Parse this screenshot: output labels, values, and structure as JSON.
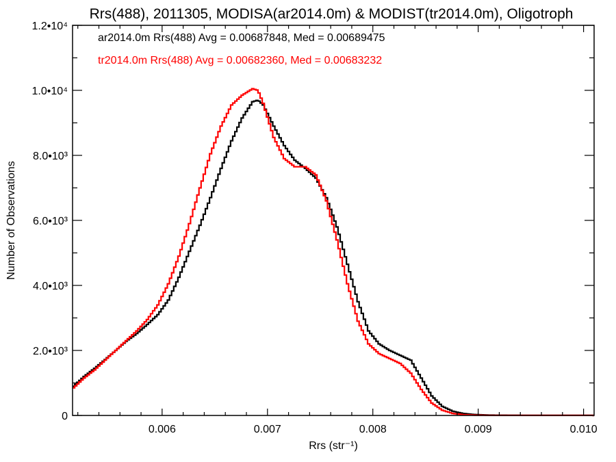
{
  "chart_data": {
    "type": "line",
    "style": "histogram-step",
    "title": "Rrs(488), 2011305, MODISA(ar2014.0m) & MODIST(tr2014.0m), Oligotroph",
    "xlabel": "Rrs (str⁻¹)",
    "ylabel": "Number of Observations",
    "xlim": [
      0.00515,
      0.0101
    ],
    "ylim": [
      0,
      12000
    ],
    "x_ticks": [
      {
        "value": 0.006,
        "label": "0.006"
      },
      {
        "value": 0.007,
        "label": "0.007"
      },
      {
        "value": 0.008,
        "label": "0.008"
      },
      {
        "value": 0.009,
        "label": "0.009"
      },
      {
        "value": 0.01,
        "label": "0.010"
      }
    ],
    "y_ticks": [
      {
        "value": 0,
        "label": "0"
      },
      {
        "value": 2000,
        "label": "2.0•10³"
      },
      {
        "value": 4000,
        "label": "4.0•10³"
      },
      {
        "value": 6000,
        "label": "6.0•10³"
      },
      {
        "value": 8000,
        "label": "8.0•10³"
      },
      {
        "value": 10000,
        "label": "1.0•10⁴"
      },
      {
        "value": 12000,
        "label": "1.2•10⁴"
      }
    ],
    "legend": {
      "placement": "top-left"
    },
    "series": [
      {
        "name": "ar2014.0m Rrs(488) Avg = 0.00687848, Med = 0.00689475",
        "color": "#000000",
        "points": [
          [
            0.00515,
            900
          ],
          [
            0.00525,
            1200
          ],
          [
            0.00535,
            1450
          ],
          [
            0.00545,
            1720
          ],
          [
            0.00555,
            2000
          ],
          [
            0.00565,
            2280
          ],
          [
            0.00575,
            2520
          ],
          [
            0.00585,
            2800
          ],
          [
            0.00595,
            3100
          ],
          [
            0.00605,
            3550
          ],
          [
            0.00615,
            4250
          ],
          [
            0.00625,
            5050
          ],
          [
            0.00635,
            5850
          ],
          [
            0.00645,
            6700
          ],
          [
            0.00655,
            7600
          ],
          [
            0.00665,
            8450
          ],
          [
            0.00675,
            9150
          ],
          [
            0.00685,
            9650
          ],
          [
            0.0069,
            9700
          ],
          [
            0.00695,
            9550
          ],
          [
            0.00705,
            8900
          ],
          [
            0.00715,
            8300
          ],
          [
            0.00725,
            7850
          ],
          [
            0.00735,
            7600
          ],
          [
            0.00745,
            7300
          ],
          [
            0.00755,
            6700
          ],
          [
            0.00765,
            5800
          ],
          [
            0.00775,
            4650
          ],
          [
            0.00785,
            3500
          ],
          [
            0.00795,
            2600
          ],
          [
            0.00805,
            2200
          ],
          [
            0.00815,
            2000
          ],
          [
            0.00825,
            1850
          ],
          [
            0.00835,
            1700
          ],
          [
            0.00845,
            1150
          ],
          [
            0.00855,
            600
          ],
          [
            0.00865,
            280
          ],
          [
            0.00875,
            130
          ],
          [
            0.00885,
            60
          ],
          [
            0.00895,
            30
          ],
          [
            0.0091,
            10
          ],
          [
            0.0095,
            3
          ],
          [
            0.0101,
            1
          ]
        ]
      },
      {
        "name": "tr2014.0m Rrs(488) Avg = 0.00682360, Med = 0.00683232",
        "color": "#ff0000",
        "points": [
          [
            0.00515,
            850
          ],
          [
            0.00525,
            1150
          ],
          [
            0.00535,
            1400
          ],
          [
            0.00545,
            1700
          ],
          [
            0.00555,
            2000
          ],
          [
            0.00565,
            2300
          ],
          [
            0.00575,
            2600
          ],
          [
            0.00585,
            2950
          ],
          [
            0.00595,
            3400
          ],
          [
            0.00605,
            4050
          ],
          [
            0.00615,
            4900
          ],
          [
            0.00625,
            5900
          ],
          [
            0.00635,
            7000
          ],
          [
            0.00645,
            8050
          ],
          [
            0.00655,
            8900
          ],
          [
            0.00665,
            9550
          ],
          [
            0.00675,
            9850
          ],
          [
            0.00685,
            10050
          ],
          [
            0.0069,
            10000
          ],
          [
            0.00695,
            9600
          ],
          [
            0.00705,
            8550
          ],
          [
            0.00715,
            7900
          ],
          [
            0.00725,
            7650
          ],
          [
            0.00735,
            7650
          ],
          [
            0.00745,
            7400
          ],
          [
            0.00755,
            6600
          ],
          [
            0.00765,
            5400
          ],
          [
            0.00775,
            4050
          ],
          [
            0.00785,
            2900
          ],
          [
            0.00795,
            2200
          ],
          [
            0.00805,
            1900
          ],
          [
            0.00815,
            1750
          ],
          [
            0.00825,
            1600
          ],
          [
            0.00835,
            1300
          ],
          [
            0.00845,
            800
          ],
          [
            0.00855,
            380
          ],
          [
            0.00865,
            160
          ],
          [
            0.00875,
            60
          ],
          [
            0.00885,
            25
          ],
          [
            0.00895,
            10
          ],
          [
            0.0091,
            4
          ],
          [
            0.0101,
            1
          ]
        ]
      }
    ]
  }
}
